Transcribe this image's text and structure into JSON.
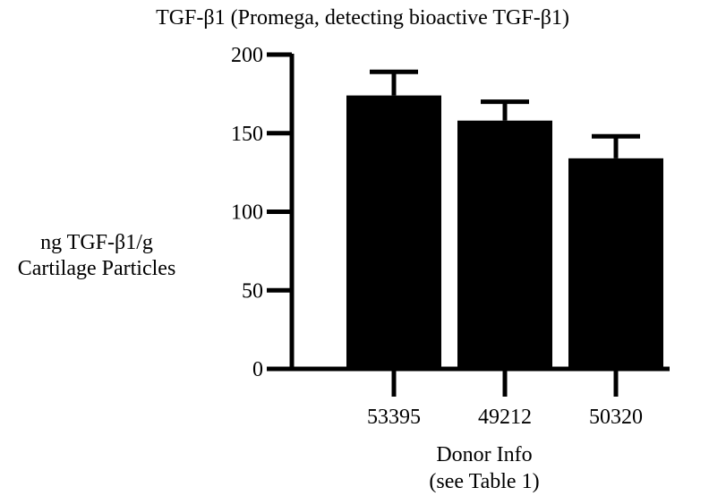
{
  "chart_data": {
    "type": "bar",
    "title": "TGF-β1 (Promega, detecting bioactive TGF-β1)",
    "ylabel_lines": [
      "ng TGF-β1/g",
      "Cartilage Particles"
    ],
    "xlabel_lines": [
      "Donor Info",
      "(see Table 1)"
    ],
    "categories": [
      "53395",
      "49212",
      "50320"
    ],
    "values": [
      174,
      158,
      134
    ],
    "errors": [
      15,
      12,
      14
    ],
    "ylim": [
      0,
      200
    ],
    "yticks": [
      0,
      50,
      100,
      150,
      200
    ],
    "grid": false,
    "legend": "none",
    "colors": {
      "bar": "#000000",
      "axis": "#000000",
      "background": "#ffffff"
    }
  }
}
